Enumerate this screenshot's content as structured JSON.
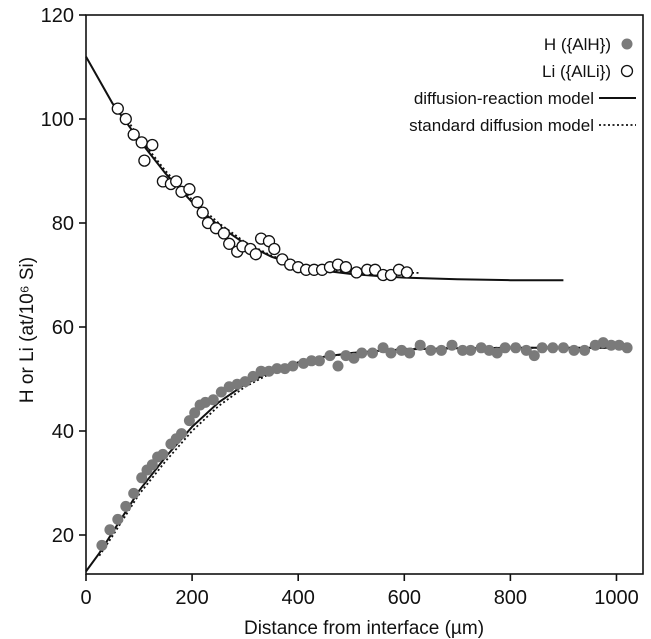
{
  "chart_data": {
    "type": "scatter",
    "xlabel": "Distance from interface (µm)",
    "ylabel": "H or Li (at/10⁶ Si)",
    "xlim": [
      0,
      1050
    ],
    "ylim": [
      12.5,
      120
    ],
    "xticks": [
      0,
      200,
      400,
      600,
      800,
      1000
    ],
    "yticks": [
      20,
      40,
      60,
      80,
      100,
      120
    ],
    "grid": false,
    "legend_position": "top-right",
    "legend": [
      {
        "label": "H ({AlH})",
        "kind": "filled-marker"
      },
      {
        "label": "Li ({AlLi})",
        "kind": "open-marker"
      },
      {
        "label": "diffusion-reaction model",
        "kind": "solid-line"
      },
      {
        "label": "standard diffusion model",
        "kind": "dotted-line"
      }
    ],
    "series": [
      {
        "name": "H ({AlH})",
        "kind": "scatter",
        "marker": "filled",
        "color": "#7a7a7a",
        "points": [
          [
            30,
            18
          ],
          [
            45,
            21
          ],
          [
            60,
            23
          ],
          [
            75,
            25.5
          ],
          [
            90,
            28
          ],
          [
            105,
            31
          ],
          [
            115,
            32.5
          ],
          [
            125,
            33.5
          ],
          [
            135,
            35
          ],
          [
            145,
            35.5
          ],
          [
            160,
            37.5
          ],
          [
            170,
            38.5
          ],
          [
            180,
            39.5
          ],
          [
            195,
            42
          ],
          [
            205,
            43.5
          ],
          [
            215,
            45
          ],
          [
            225,
            45.5
          ],
          [
            240,
            46
          ],
          [
            255,
            47.5
          ],
          [
            270,
            48.5
          ],
          [
            285,
            49
          ],
          [
            300,
            49.5
          ],
          [
            315,
            50.5
          ],
          [
            330,
            51.5
          ],
          [
            345,
            51.5
          ],
          [
            360,
            52
          ],
          [
            375,
            52
          ],
          [
            390,
            52.5
          ],
          [
            410,
            53
          ],
          [
            425,
            53.5
          ],
          [
            440,
            53.5
          ],
          [
            460,
            54.5
          ],
          [
            475,
            52.5
          ],
          [
            490,
            54.5
          ],
          [
            505,
            54
          ],
          [
            520,
            55
          ],
          [
            540,
            55
          ],
          [
            560,
            56
          ],
          [
            575,
            55
          ],
          [
            595,
            55.5
          ],
          [
            610,
            55
          ],
          [
            630,
            56.5
          ],
          [
            650,
            55.5
          ],
          [
            670,
            55.5
          ],
          [
            690,
            56.5
          ],
          [
            710,
            55.5
          ],
          [
            725,
            55.5
          ],
          [
            745,
            56
          ],
          [
            760,
            55.5
          ],
          [
            775,
            55
          ],
          [
            790,
            56
          ],
          [
            810,
            56
          ],
          [
            830,
            55.5
          ],
          [
            845,
            54.5
          ],
          [
            860,
            56
          ],
          [
            880,
            56
          ],
          [
            900,
            56
          ],
          [
            920,
            55.5
          ],
          [
            940,
            55.5
          ],
          [
            960,
            56.5
          ],
          [
            975,
            57
          ],
          [
            990,
            56.5
          ],
          [
            1005,
            56.5
          ],
          [
            1020,
            56
          ]
        ]
      },
      {
        "name": "Li ({AlLi})",
        "kind": "scatter",
        "marker": "open",
        "color": "#111111",
        "points": [
          [
            60,
            102
          ],
          [
            75,
            100
          ],
          [
            90,
            97
          ],
          [
            105,
            95.5
          ],
          [
            110,
            92
          ],
          [
            125,
            95
          ],
          [
            145,
            88
          ],
          [
            160,
            87.5
          ],
          [
            170,
            88
          ],
          [
            180,
            86
          ],
          [
            195,
            86.5
          ],
          [
            210,
            84
          ],
          [
            220,
            82
          ],
          [
            230,
            80
          ],
          [
            245,
            79
          ],
          [
            260,
            78
          ],
          [
            270,
            76
          ],
          [
            285,
            74.5
          ],
          [
            295,
            75.5
          ],
          [
            310,
            75
          ],
          [
            320,
            74
          ],
          [
            330,
            77
          ],
          [
            345,
            76.5
          ],
          [
            355,
            75
          ],
          [
            370,
            73
          ],
          [
            385,
            72
          ],
          [
            400,
            71.5
          ],
          [
            415,
            71
          ],
          [
            430,
            71
          ],
          [
            445,
            71
          ],
          [
            460,
            71.5
          ],
          [
            475,
            72
          ],
          [
            490,
            71.5
          ],
          [
            510,
            70.5
          ],
          [
            530,
            71
          ],
          [
            545,
            71
          ],
          [
            560,
            70
          ],
          [
            575,
            70
          ],
          [
            590,
            71
          ],
          [
            605,
            70.5
          ]
        ]
      },
      {
        "name": "diffusion-reaction model",
        "kind": "line",
        "style": "solid",
        "color": "#111111",
        "points": [
          [
            0,
            112
          ],
          [
            50,
            103
          ],
          [
            100,
            96
          ],
          [
            150,
            89.5
          ],
          [
            200,
            84
          ],
          [
            250,
            79.5
          ],
          [
            300,
            76
          ],
          [
            350,
            73.5
          ],
          [
            400,
            71.8
          ],
          [
            450,
            70.8
          ],
          [
            500,
            70.2
          ],
          [
            550,
            69.8
          ],
          [
            600,
            69.5
          ],
          [
            700,
            69.2
          ],
          [
            800,
            69
          ],
          [
            900,
            69
          ]
        ]
      },
      {
        "name": "standard diffusion model",
        "kind": "line",
        "style": "dotted",
        "color": "#111111",
        "points": [
          [
            60,
            102.5
          ],
          [
            100,
            96.5
          ],
          [
            150,
            90
          ],
          [
            200,
            84.5
          ],
          [
            250,
            80
          ],
          [
            300,
            76.3
          ],
          [
            350,
            73.7
          ],
          [
            400,
            72
          ],
          [
            450,
            71
          ],
          [
            500,
            70.6
          ],
          [
            550,
            70.5
          ],
          [
            600,
            70.4
          ],
          [
            630,
            70.4
          ]
        ]
      },
      {
        "name": "diffusion-reaction model (H)",
        "kind": "line",
        "style": "solid",
        "color": "#111111",
        "points": [
          [
            0,
            13
          ],
          [
            25,
            16.5
          ],
          [
            50,
            20.5
          ],
          [
            75,
            24.5
          ],
          [
            100,
            28.5
          ],
          [
            150,
            35
          ],
          [
            200,
            40.8
          ],
          [
            250,
            45.5
          ],
          [
            300,
            49
          ],
          [
            350,
            51.5
          ],
          [
            400,
            53.2
          ],
          [
            450,
            54.3
          ],
          [
            500,
            55
          ],
          [
            550,
            55.4
          ],
          [
            600,
            55.7
          ],
          [
            700,
            55.9
          ],
          [
            800,
            56
          ],
          [
            1025,
            56
          ]
        ]
      },
      {
        "name": "standard diffusion model (H)",
        "kind": "line",
        "style": "dotted",
        "color": "#111111",
        "points": [
          [
            25,
            16
          ],
          [
            50,
            19.8
          ],
          [
            75,
            23.8
          ],
          [
            100,
            27.8
          ],
          [
            150,
            34.2
          ],
          [
            200,
            40
          ],
          [
            250,
            44.8
          ],
          [
            300,
            48.5
          ],
          [
            350,
            51.2
          ],
          [
            400,
            53
          ],
          [
            450,
            54.2
          ],
          [
            500,
            55
          ],
          [
            550,
            55.5
          ],
          [
            600,
            55.8
          ],
          [
            700,
            56
          ],
          [
            800,
            56
          ],
          [
            1025,
            56
          ]
        ]
      }
    ]
  }
}
